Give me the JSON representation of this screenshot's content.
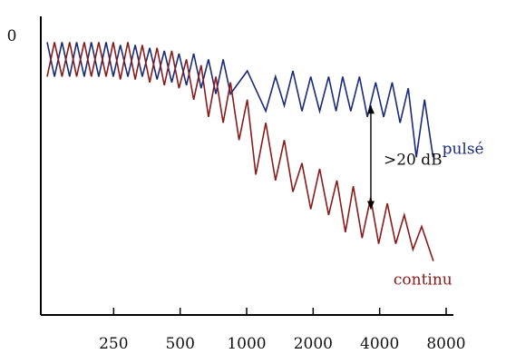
{
  "chart_data": {
    "type": "line",
    "title": "",
    "xlabel": "",
    "ylabel": "",
    "x_ticks": [
      "250",
      "500",
      "1000",
      "2000",
      "4000",
      "8000"
    ],
    "y_ticks": [
      "0"
    ],
    "x_range": [
      125,
      8000
    ],
    "y_range": [
      -40,
      0
    ],
    "series": [
      {
        "name": "pulsé",
        "color": "#1a2a7a",
        "points": [
          [
            125,
            -1
          ],
          [
            135,
            -7
          ],
          [
            146,
            -1
          ],
          [
            158,
            -7
          ],
          [
            170,
            -1
          ],
          [
            184,
            -7
          ],
          [
            198,
            -1
          ],
          [
            214,
            -7
          ],
          [
            231,
            -1
          ],
          [
            249,
            -7
          ],
          [
            268,
            -1.5
          ],
          [
            290,
            -7
          ],
          [
            313,
            -1.5
          ],
          [
            337,
            -7
          ],
          [
            364,
            -2
          ],
          [
            393,
            -7.5
          ],
          [
            424,
            -2.5
          ],
          [
            458,
            -8
          ],
          [
            494,
            -3
          ],
          [
            534,
            -8.5
          ],
          [
            576,
            -3
          ],
          [
            622,
            -9
          ],
          [
            672,
            -4
          ],
          [
            725,
            -10
          ],
          [
            783,
            -4
          ],
          [
            845,
            -10
          ],
          [
            1007,
            -6
          ],
          [
            1221,
            -13
          ],
          [
            1350,
            -7
          ],
          [
            1480,
            -12
          ],
          [
            1620,
            -6
          ],
          [
            1780,
            -13
          ],
          [
            1950,
            -7
          ],
          [
            2140,
            -13
          ],
          [
            2350,
            -7
          ],
          [
            2540,
            -13
          ],
          [
            2720,
            -7
          ],
          [
            2960,
            -13
          ],
          [
            3240,
            -7
          ],
          [
            3520,
            -14
          ],
          [
            3840,
            -8
          ],
          [
            4170,
            -14
          ],
          [
            4560,
            -8
          ],
          [
            4950,
            -15
          ],
          [
            5390,
            -9
          ],
          [
            5860,
            -21
          ],
          [
            6390,
            -11
          ],
          [
            6980,
            -21
          ]
        ]
      },
      {
        "name": "continu",
        "color": "#8b1a1a",
        "points": [
          [
            125,
            -7
          ],
          [
            135,
            -1
          ],
          [
            146,
            -7
          ],
          [
            158,
            -1
          ],
          [
            170,
            -7
          ],
          [
            184,
            -1
          ],
          [
            198,
            -7
          ],
          [
            214,
            -1
          ],
          [
            231,
            -7
          ],
          [
            249,
            -1
          ],
          [
            268,
            -7.5
          ],
          [
            290,
            -1
          ],
          [
            313,
            -7.5
          ],
          [
            337,
            -1.5
          ],
          [
            364,
            -8
          ],
          [
            393,
            -2
          ],
          [
            424,
            -8.5
          ],
          [
            458,
            -2.5
          ],
          [
            494,
            -9
          ],
          [
            534,
            -4
          ],
          [
            576,
            -11
          ],
          [
            622,
            -5
          ],
          [
            672,
            -14
          ],
          [
            725,
            -7
          ],
          [
            783,
            -15
          ],
          [
            845,
            -8
          ],
          [
            924,
            -18
          ],
          [
            1007,
            -11
          ],
          [
            1100,
            -24
          ],
          [
            1221,
            -15
          ],
          [
            1350,
            -25
          ],
          [
            1480,
            -18
          ],
          [
            1620,
            -27
          ],
          [
            1780,
            -22
          ],
          [
            1950,
            -30
          ],
          [
            2140,
            -23
          ],
          [
            2350,
            -31
          ],
          [
            2560,
            -25
          ],
          [
            2800,
            -34
          ],
          [
            3040,
            -26
          ],
          [
            3330,
            -35
          ],
          [
            3640,
            -28
          ],
          [
            3960,
            -36
          ],
          [
            4330,
            -29
          ],
          [
            4730,
            -36
          ],
          [
            5170,
            -31
          ],
          [
            5660,
            -37
          ],
          [
            6200,
            -33
          ],
          [
            7000,
            -39
          ]
        ]
      }
    ],
    "annotation": {
      "text": ">20 dB",
      "x": 3650,
      "y_top": -12,
      "y_bottom": -30
    },
    "grid": false,
    "legend": "inline labels at right end of each curve"
  }
}
